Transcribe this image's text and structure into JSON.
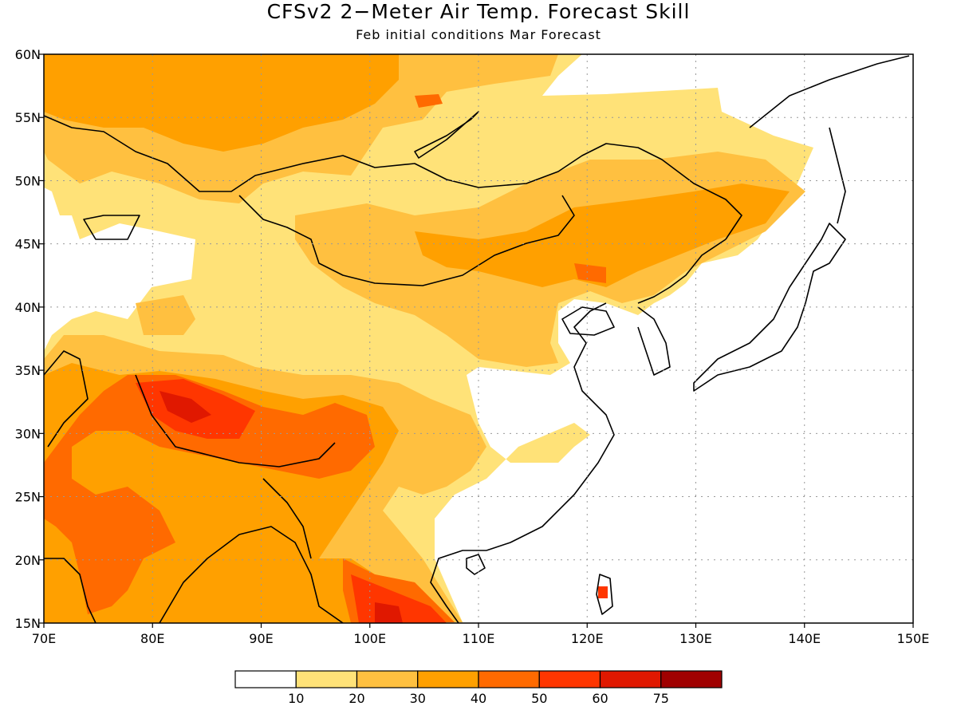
{
  "header": {
    "title": "CFSv2 2−Meter Air Temp. Forecast Skill",
    "subtitle": "Feb initial conditions  Mar Forecast"
  },
  "map": {
    "lon_range": [
      70,
      150
    ],
    "lat_range": [
      15,
      60
    ],
    "lon_ticks": [
      70,
      80,
      90,
      100,
      110,
      120,
      130,
      140,
      150
    ],
    "lat_ticks": [
      15,
      20,
      25,
      30,
      35,
      40,
      45,
      50,
      55,
      60
    ],
    "lon_tick_labels": [
      "70E",
      "80E",
      "90E",
      "100E",
      "110E",
      "120E",
      "130E",
      "140E",
      "150E"
    ],
    "lat_tick_labels": [
      "15N",
      "20N",
      "25N",
      "30N",
      "35N",
      "40N",
      "45N",
      "50N",
      "55N",
      "60N"
    ],
    "gridlines": "dotted"
  },
  "colorbar": {
    "colors": [
      "#ffffff",
      "#ffe278",
      "#ffc040",
      "#ffa000",
      "#ff6a00",
      "#ff3600",
      "#e01800",
      "#a00000"
    ],
    "labels": [
      "10",
      "20",
      "30",
      "40",
      "50",
      "60",
      "75"
    ]
  }
}
